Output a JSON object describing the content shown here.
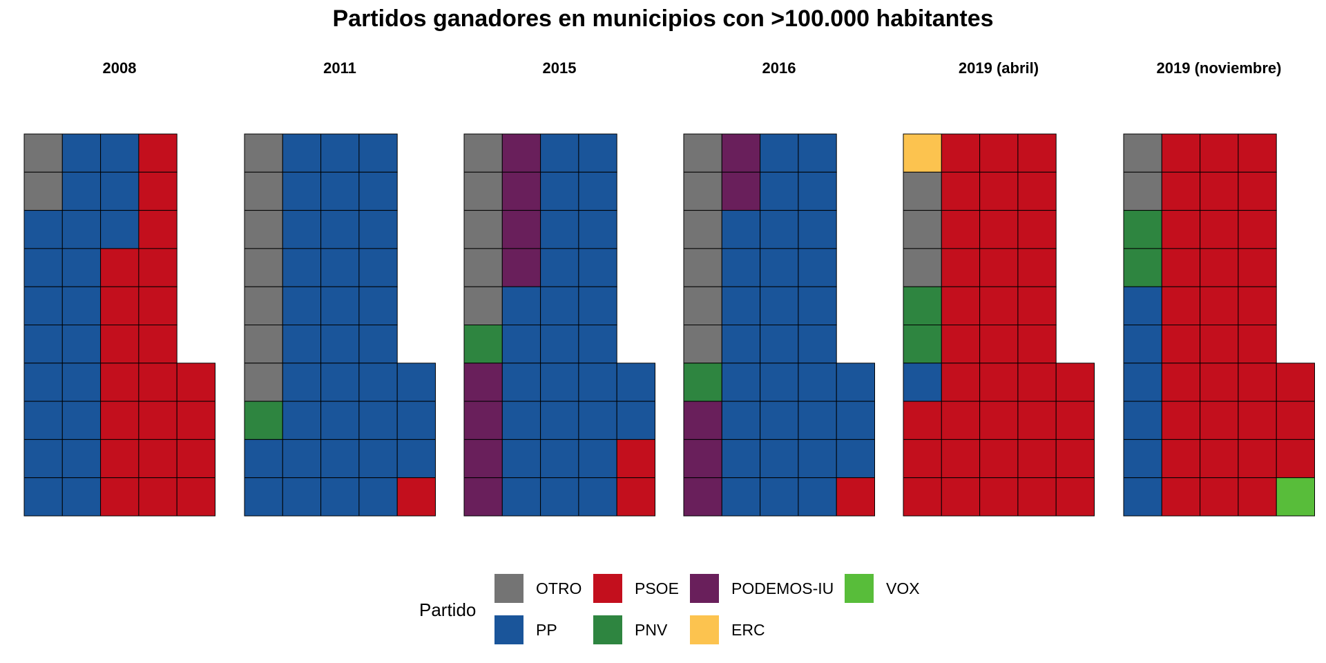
{
  "chart_data": {
    "type": "waffle",
    "title": "Partidos ganadores en municipios con >100.000 habitantes",
    "legend": {
      "title": "Partido",
      "position": "bottom",
      "entries": [
        {
          "key": "OTRO",
          "label": "OTRO",
          "color": "#747474"
        },
        {
          "key": "PP",
          "label": "PP",
          "color": "#1A559A"
        },
        {
          "key": "PSOE",
          "label": "PSOE",
          "color": "#C30F1D"
        },
        {
          "key": "PNV",
          "label": "PNV",
          "color": "#2E8540"
        },
        {
          "key": "PODEMOS-IU",
          "label": "PODEMOS-IU",
          "color": "#691F5B"
        },
        {
          "key": "ERC",
          "label": "ERC",
          "color": "#FCC34F"
        },
        {
          "key": "VOX",
          "label": "VOX",
          "color": "#58BD3A"
        }
      ]
    },
    "cells_per_column": 10,
    "panels": [
      {
        "label": "2008",
        "counts": {
          "OTRO": 2,
          "PP": 21,
          "PSOE": 21
        }
      },
      {
        "label": "2011",
        "counts": {
          "OTRO": 7,
          "PNV": 1,
          "PP": 35,
          "PSOE": 1
        }
      },
      {
        "label": "2015",
        "counts": {
          "OTRO": 5,
          "PNV": 1,
          "PODEMOS-IU": 8,
          "PP": 28,
          "PSOE": 2
        }
      },
      {
        "label": "2016",
        "counts": {
          "OTRO": 6,
          "PNV": 1,
          "PODEMOS-IU": 5,
          "PP": 31,
          "PSOE": 1
        }
      },
      {
        "label": "2019 (abril)",
        "counts": {
          "ERC": 1,
          "OTRO": 3,
          "PNV": 2,
          "PP": 1,
          "PSOE": 37
        }
      },
      {
        "label": "2019 (noviembre)",
        "counts": {
          "OTRO": 2,
          "PNV": 2,
          "PP": 6,
          "PSOE": 33,
          "VOX": 1
        }
      }
    ]
  }
}
